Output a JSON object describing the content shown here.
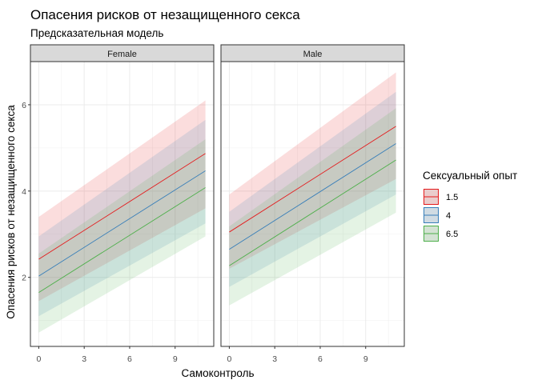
{
  "chart_data": {
    "type": "line",
    "title": "Опасения рисков от незащищенного секса",
    "subtitle": "Предсказательная модель",
    "xlabel": "Самоконтроль",
    "ylabel": "Опасения рисков от незащищенного секса",
    "xlim": [
      -0.55,
      11.55
    ],
    "ylim": [
      0.4,
      7.0
    ],
    "x_ticks": [
      0,
      3,
      6,
      9
    ],
    "x_tick_labels": [
      "0",
      "3",
      "6",
      "9"
    ],
    "y_ticks": [
      2,
      4,
      6
    ],
    "y_tick_labels": [
      "2",
      "4",
      "6"
    ],
    "grid": true,
    "legend": {
      "title": "Сексуальный опыт",
      "position": "right",
      "entries": [
        "1.5",
        "4",
        "6.5"
      ]
    },
    "colors": {
      "1.5": "#e41a1c",
      "4": "#377eb8",
      "6.5": "#4daf4a"
    },
    "panels": [
      {
        "strip": "Female",
        "series": [
          {
            "name": "1.5",
            "x": [
              0,
              11
            ],
            "y": [
              2.42,
              4.87
            ],
            "lower": [
              1.45,
              3.6
            ],
            "upper": [
              3.4,
              6.1
            ]
          },
          {
            "name": "4",
            "x": [
              0,
              11
            ],
            "y": [
              2.03,
              4.47
            ],
            "lower": [
              1.1,
              3.25
            ],
            "upper": [
              2.95,
              5.65
            ]
          },
          {
            "name": "6.5",
            "x": [
              0,
              11
            ],
            "y": [
              1.65,
              4.08
            ],
            "lower": [
              0.72,
              2.95
            ],
            "upper": [
              2.55,
              5.2
            ]
          }
        ]
      },
      {
        "strip": "Male",
        "series": [
          {
            "name": "1.5",
            "x": [
              0,
              11
            ],
            "y": [
              3.05,
              5.5
            ],
            "lower": [
              2.2,
              4.28
            ],
            "upper": [
              3.92,
              6.75
            ]
          },
          {
            "name": "4",
            "x": [
              0,
              11
            ],
            "y": [
              2.65,
              5.1
            ],
            "lower": [
              1.78,
              3.92
            ],
            "upper": [
              3.52,
              6.3
            ]
          },
          {
            "name": "6.5",
            "x": [
              0,
              11
            ],
            "y": [
              2.27,
              4.72
            ],
            "lower": [
              1.35,
              3.5
            ],
            "upper": [
              3.18,
              5.92
            ]
          }
        ]
      }
    ]
  }
}
